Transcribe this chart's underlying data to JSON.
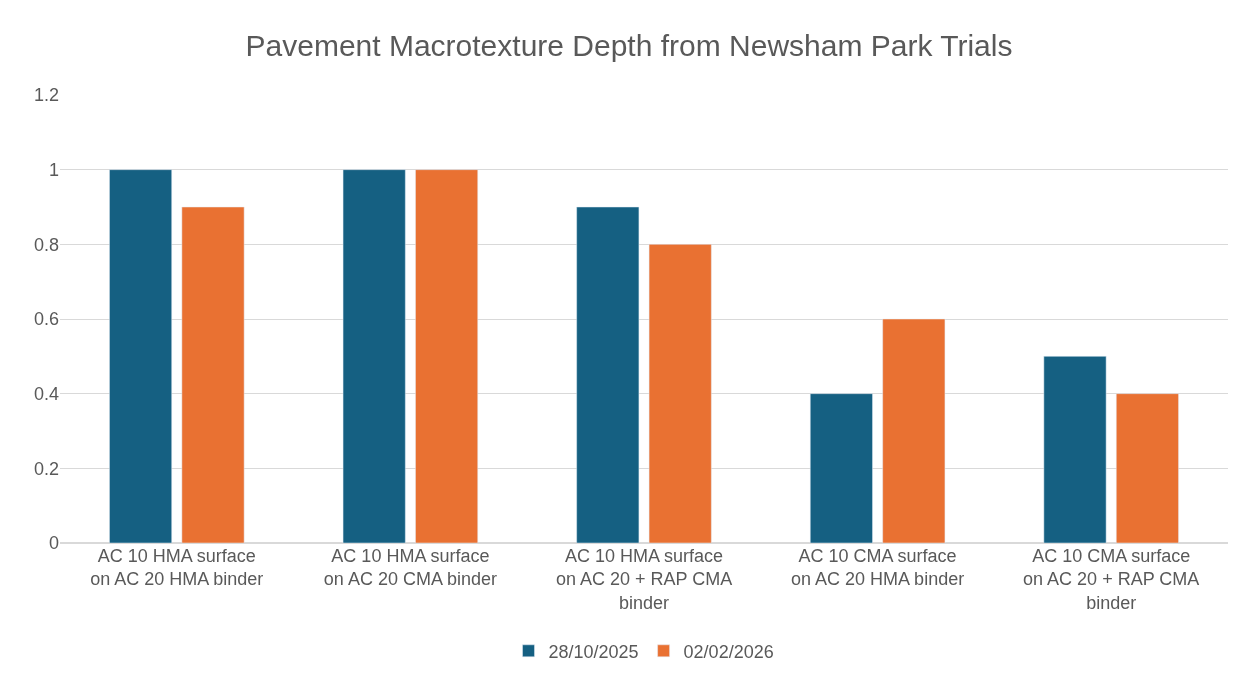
{
  "chart_data": {
    "type": "bar",
    "title": "Pavement Macrotexture Depth from Newsham Park Trials",
    "categories": [
      "AC 10 HMA surface on AC 20 HMA binder",
      "AC 10 HMA surface on AC 20 CMA binder",
      "AC 10 HMA surface on AC 20 + RAP CMA binder",
      "AC 10 CMA surface on AC 20 HMA binder",
      "AC 10 CMA surface on AC 20 + RAP CMA binder"
    ],
    "series": [
      {
        "name": "28/10/2025",
        "color": "#156082",
        "values": [
          1,
          1,
          0.9,
          0.4,
          0.5
        ]
      },
      {
        "name": "02/02/2026",
        "color": "#e97132",
        "values": [
          0.9,
          1,
          0.8,
          0.6,
          0.4
        ]
      }
    ],
    "ylim": [
      0,
      1.2
    ],
    "yticks": [
      0,
      0.2,
      0.4,
      0.6,
      0.8,
      1,
      1.2
    ],
    "grid": "y",
    "legend": "bottom"
  }
}
